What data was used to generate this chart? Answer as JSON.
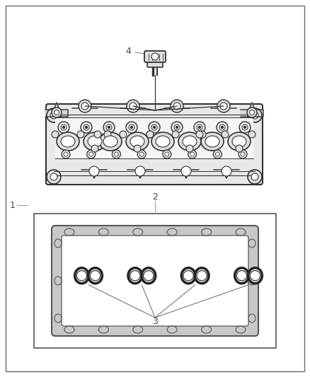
{
  "background": "#ffffff",
  "outer_border_color": "#555555",
  "label_1": "1",
  "label_2": "2",
  "label_3": "3",
  "label_4": "4",
  "label_fontsize": 8,
  "label_color": "#444444",
  "line_color": "#333333",
  "light_gray": "#cccccc",
  "med_gray": "#aaaaaa",
  "part_fill": "#f0f0f0",
  "gasket_gray": "#b0b0b0"
}
